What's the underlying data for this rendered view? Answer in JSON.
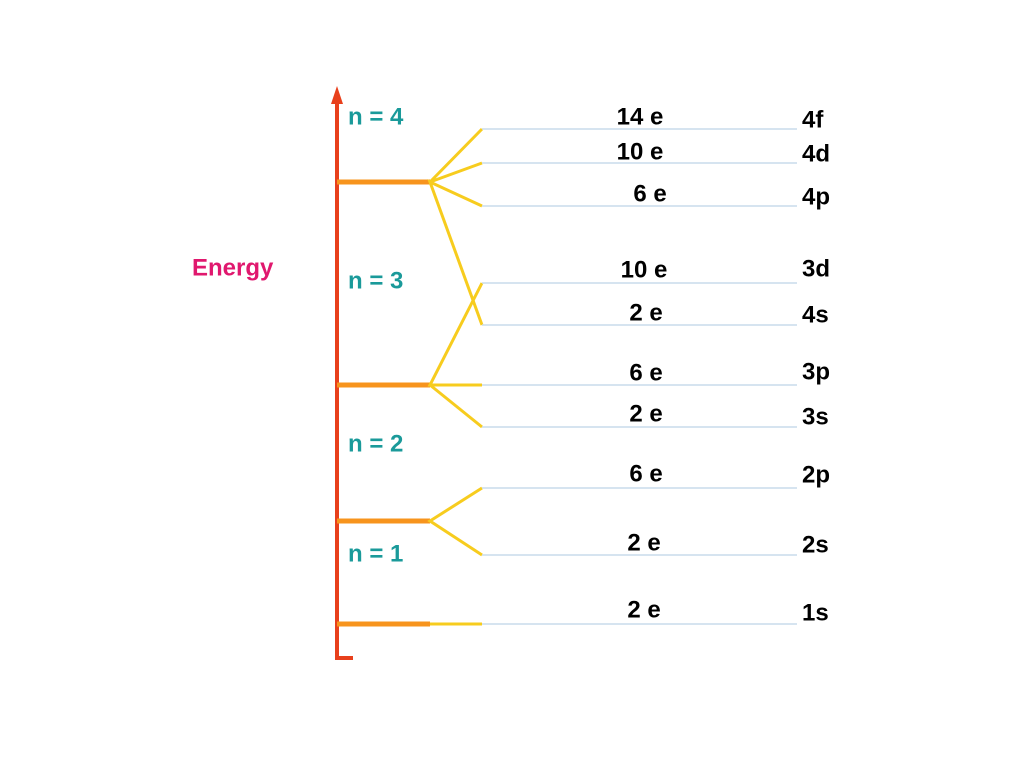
{
  "axis_label": "Energy",
  "shells": [
    "n = 4",
    "n = 3",
    "n = 2",
    "n = 1"
  ],
  "sublevels": [
    {
      "electrons": "14 e",
      "orbital": "4f"
    },
    {
      "electrons": "10 e",
      "orbital": "4d"
    },
    {
      "electrons": "6 e",
      "orbital": "4p"
    },
    {
      "electrons": "10 e",
      "orbital": "3d"
    },
    {
      "electrons": "2 e",
      "orbital": "4s"
    },
    {
      "electrons": "6 e",
      "orbital": "3p"
    },
    {
      "electrons": "2 e",
      "orbital": "3s"
    },
    {
      "electrons": "6 e",
      "orbital": "2p"
    },
    {
      "electrons": "2 e",
      "orbital": "2s"
    },
    {
      "electrons": "2 e",
      "orbital": "1s"
    }
  ]
}
